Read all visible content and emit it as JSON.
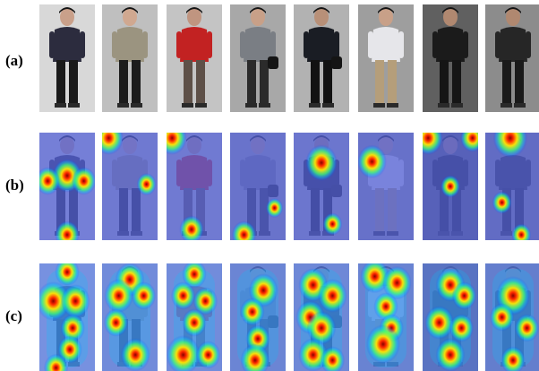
{
  "figure": {
    "rows": [
      {
        "label": "(a)",
        "kind": "original"
      },
      {
        "label": "(b)",
        "kind": "heatmap-sparse"
      },
      {
        "label": "(c)",
        "kind": "heatmap-dense"
      }
    ],
    "people": [
      {
        "top": "#2c2c3e",
        "bottom": "#1a1a1a",
        "bg": "#d8d8d8",
        "skin": "#c9a08a",
        "bag": false
      },
      {
        "top": "#9b9480",
        "bottom": "#1c1c1c",
        "bg": "#bfbfbf",
        "skin": "#d0a890",
        "bag": false
      },
      {
        "top": "#c22222",
        "bottom": "#5e5048",
        "bg": "#c4c4c4",
        "skin": "#c09580",
        "bag": false
      },
      {
        "top": "#7a7e84",
        "bottom": "#2b2b2b",
        "bg": "#a8a8a8",
        "skin": "#c8a088",
        "bag": true
      },
      {
        "top": "#1a1d24",
        "bottom": "#121212",
        "bg": "#b2b2b2",
        "skin": "#b89078",
        "bag": true
      },
      {
        "top": "#e6e6ea",
        "bottom": "#b59e7a",
        "bg": "#9e9e9e",
        "skin": "#c8a088",
        "bag": false
      },
      {
        "top": "#1b1b1b",
        "bottom": "#151515",
        "bg": "#606060",
        "skin": "#b08870",
        "bag": false
      },
      {
        "top": "#262626",
        "bottom": "#1a1a1a",
        "bg": "#8c8c8c",
        "skin": "#b08870",
        "bag": false
      }
    ],
    "hotspots_b": [
      [
        [
          0.5,
          0.4,
          0.12
        ],
        [
          0.15,
          0.45,
          0.1
        ],
        [
          0.8,
          0.45,
          0.1
        ],
        [
          0.5,
          0.95,
          0.1
        ]
      ],
      [
        [
          0.12,
          0.05,
          0.12
        ],
        [
          0.8,
          0.48,
          0.08
        ]
      ],
      [
        [
          0.1,
          0.05,
          0.12
        ],
        [
          0.45,
          0.9,
          0.1
        ]
      ],
      [
        [
          0.25,
          0.95,
          0.1
        ],
        [
          0.8,
          0.7,
          0.07
        ]
      ],
      [
        [
          0.5,
          0.28,
          0.13
        ],
        [
          0.7,
          0.85,
          0.08
        ]
      ],
      [
        [
          0.25,
          0.27,
          0.12
        ]
      ],
      [
        [
          0.1,
          0.05,
          0.12
        ],
        [
          0.9,
          0.05,
          0.1
        ],
        [
          0.5,
          0.5,
          0.08
        ]
      ],
      [
        [
          0.45,
          0.05,
          0.14
        ],
        [
          0.3,
          0.65,
          0.08
        ],
        [
          0.65,
          0.95,
          0.08
        ]
      ]
    ],
    "hotspots_c": [
      [
        [
          0.5,
          0.08,
          0.1
        ],
        [
          0.25,
          0.35,
          0.14
        ],
        [
          0.65,
          0.35,
          0.12
        ],
        [
          0.6,
          0.6,
          0.1
        ],
        [
          0.55,
          0.8,
          0.1
        ],
        [
          0.3,
          0.97,
          0.1
        ]
      ],
      [
        [
          0.5,
          0.15,
          0.12
        ],
        [
          0.3,
          0.3,
          0.12
        ],
        [
          0.75,
          0.3,
          0.1
        ],
        [
          0.25,
          0.55,
          0.1
        ],
        [
          0.6,
          0.85,
          0.12
        ]
      ],
      [
        [
          0.5,
          0.1,
          0.1
        ],
        [
          0.3,
          0.3,
          0.1
        ],
        [
          0.7,
          0.35,
          0.1
        ],
        [
          0.5,
          0.55,
          0.1
        ],
        [
          0.3,
          0.85,
          0.14
        ],
        [
          0.75,
          0.85,
          0.1
        ]
      ],
      [
        [
          0.6,
          0.25,
          0.12
        ],
        [
          0.4,
          0.45,
          0.1
        ],
        [
          0.5,
          0.7,
          0.1
        ],
        [
          0.45,
          0.9,
          0.12
        ]
      ],
      [
        [
          0.35,
          0.2,
          0.12
        ],
        [
          0.7,
          0.3,
          0.12
        ],
        [
          0.3,
          0.5,
          0.12
        ],
        [
          0.5,
          0.6,
          0.12
        ],
        [
          0.35,
          0.85,
          0.12
        ],
        [
          0.7,
          0.9,
          0.1
        ]
      ],
      [
        [
          0.3,
          0.12,
          0.12
        ],
        [
          0.7,
          0.18,
          0.12
        ],
        [
          0.5,
          0.4,
          0.1
        ],
        [
          0.6,
          0.6,
          0.1
        ],
        [
          0.45,
          0.75,
          0.14
        ]
      ],
      [
        [
          0.5,
          0.2,
          0.12
        ],
        [
          0.75,
          0.3,
          0.1
        ],
        [
          0.3,
          0.55,
          0.12
        ],
        [
          0.7,
          0.6,
          0.1
        ],
        [
          0.5,
          0.85,
          0.12
        ]
      ],
      [
        [
          0.5,
          0.3,
          0.14
        ],
        [
          0.3,
          0.5,
          0.1
        ],
        [
          0.75,
          0.6,
          0.1
        ],
        [
          0.5,
          0.9,
          0.1
        ]
      ]
    ]
  }
}
